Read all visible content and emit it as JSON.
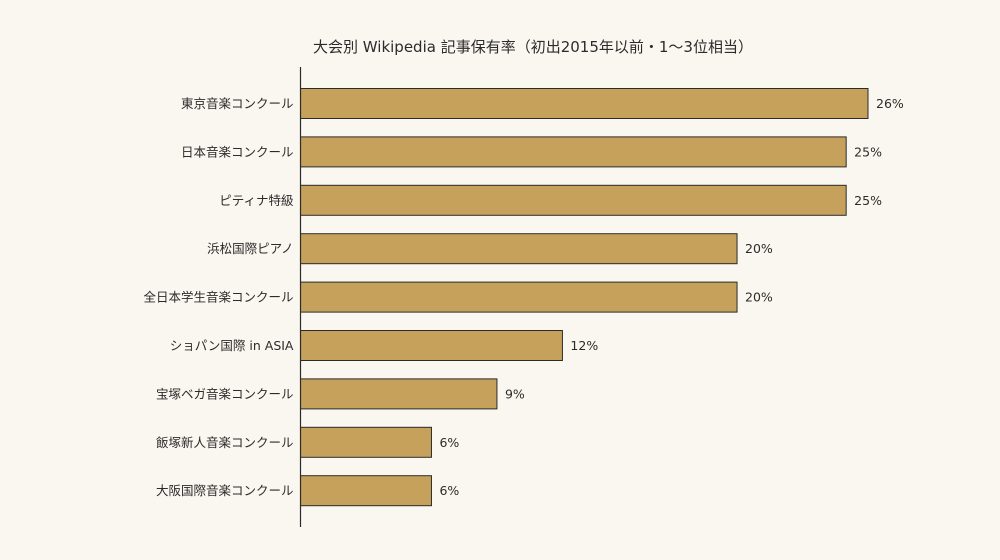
{
  "chart_data": {
    "type": "bar",
    "orientation": "horizontal",
    "title": "大会別 Wikipedia 記事保有率（初出2015年以前・1〜3位相当）",
    "categories": [
      "東京音楽コンクール",
      "日本音楽コンクール",
      "ピティナ特級",
      "浜松国際ピアノ",
      "全日本学生音楽コンクール",
      "ショパン国際 in ASIA",
      "宝塚ベガ音楽コンクール",
      "飯塚新人音楽コンクール",
      "大阪国際音楽コンクール"
    ],
    "values": [
      26,
      25,
      25,
      20,
      20,
      12,
      9,
      6,
      6
    ],
    "value_labels": [
      "26%",
      "25%",
      "25%",
      "20%",
      "20%",
      "12%",
      "9%",
      "6%",
      "6%"
    ],
    "xlim": [
      0,
      30
    ],
    "bar_color": "#c6a15b",
    "grid": false,
    "legend": "none"
  }
}
